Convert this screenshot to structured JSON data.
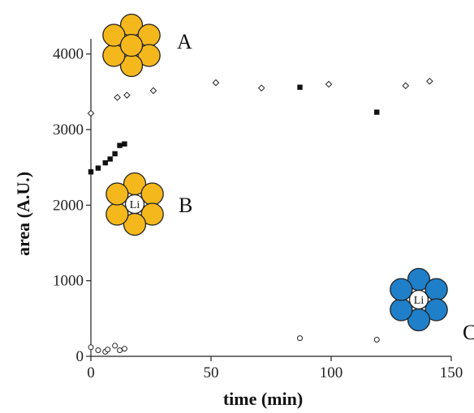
{
  "chart_data": {
    "type": "scatter",
    "xlabel": "time (min)",
    "ylabel": "area (A.U.)",
    "xlim": [
      0,
      150
    ],
    "ylim": [
      0,
      4200
    ],
    "x_ticks": [
      0,
      50,
      100,
      150
    ],
    "y_ticks": [
      0,
      1000,
      2000,
      3000,
      4000
    ],
    "tick_labels_x": [
      "0",
      "50",
      "100",
      "150"
    ],
    "tick_labels_y": [
      "0",
      "1000",
      "2000",
      "3000",
      "4000"
    ],
    "grid": false,
    "series": [
      {
        "name": "A",
        "marker": "open-diamond",
        "points": [
          {
            "x": 0,
            "y": 3215
          },
          {
            "x": 11,
            "y": 3425
          },
          {
            "x": 15,
            "y": 3455
          },
          {
            "x": 26,
            "y": 3515
          },
          {
            "x": 52,
            "y": 3620
          },
          {
            "x": 71,
            "y": 3550
          },
          {
            "x": 99,
            "y": 3600
          },
          {
            "x": 131,
            "y": 3580
          },
          {
            "x": 141,
            "y": 3640
          }
        ]
      },
      {
        "name": "B",
        "marker": "filled-square",
        "points": [
          {
            "x": 0,
            "y": 2440
          },
          {
            "x": 3,
            "y": 2490
          },
          {
            "x": 6,
            "y": 2560
          },
          {
            "x": 8,
            "y": 2610
          },
          {
            "x": 10,
            "y": 2680
          },
          {
            "x": 12,
            "y": 2790
          },
          {
            "x": 14,
            "y": 2810
          },
          {
            "x": 87,
            "y": 3560
          },
          {
            "x": 119,
            "y": 3230
          }
        ]
      },
      {
        "name": "C",
        "marker": "open-circle",
        "points": [
          {
            "x": 0,
            "y": 120
          },
          {
            "x": 3,
            "y": 80
          },
          {
            "x": 6,
            "y": 60
          },
          {
            "x": 7,
            "y": 90
          },
          {
            "x": 10,
            "y": 140
          },
          {
            "x": 12,
            "y": 80
          },
          {
            "x": 14,
            "y": 100
          },
          {
            "x": 87,
            "y": 240
          },
          {
            "x": 119,
            "y": 220
          }
        ]
      }
    ]
  },
  "structures": [
    {
      "label": "A",
      "color": "#f5b81c",
      "center_text": ""
    },
    {
      "label": "B",
      "color": "#f5b81c",
      "center_text": "Li"
    },
    {
      "label": "C",
      "color": "#1f7fc9",
      "center_text": "Li"
    }
  ]
}
